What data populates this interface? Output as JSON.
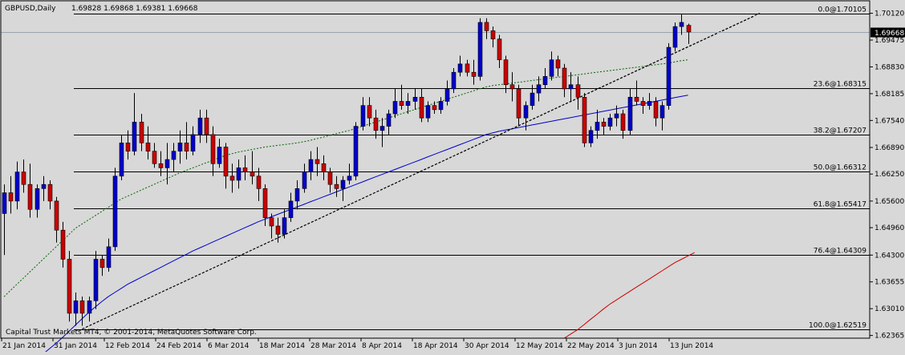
{
  "header": {
    "symbol": "GBPUSD,Daily",
    "ohlc": "1.69828 1.69868 1.69381 1.69668"
  },
  "footer": {
    "copyright": "Capital Trust Markets MT4, © 2001-2014, MetaQuotes Software Corp."
  },
  "colors": {
    "background": "#d8d8d8",
    "bull": "#0000cc",
    "bear": "#cc0000",
    "ma_slow": "#cc0000",
    "ma_mid": "#0000cc",
    "ma_fast": "#006600",
    "price_tag": "#000000"
  },
  "chart_data": {
    "type": "candlestick",
    "ylim": [
      1.623,
      1.7042
    ],
    "current_price": "1.69668",
    "price_ticks": [
      "1.70120",
      "1.69475",
      "1.68830",
      "1.68185",
      "1.67540",
      "1.66890",
      "1.66250",
      "1.65600",
      "1.64960",
      "1.64300",
      "1.63655",
      "1.63010",
      "1.62365"
    ],
    "date_ticks": [
      "21 Jan 2014",
      "31 Jan 2014",
      "12 Feb 2014",
      "24 Feb 2014",
      "6 Mar 2014",
      "18 Mar 2014",
      "28 Mar 2014",
      "8 Apr 2014",
      "18 Apr 2014",
      "30 Apr 2014",
      "12 May 2014",
      "22 May 2014",
      "3 Jun 2014",
      "13 Jun 2014"
    ],
    "fib_levels": [
      {
        "label": "0.0@1.70105",
        "price": 1.70105
      },
      {
        "label": "23.6@1.68315",
        "price": 1.68315
      },
      {
        "label": "38.2@1.67207",
        "price": 1.67207
      },
      {
        "label": "50.0@1.66312",
        "price": 1.66312
      },
      {
        "label": "61.8@1.65417",
        "price": 1.65417
      },
      {
        "label": "76.4@1.64309",
        "price": 1.64309
      },
      {
        "label": "100.0@1.62519",
        "price": 1.62519
      }
    ],
    "trendlines": [
      {
        "from": [
          12,
          1.6252
        ],
        "to": [
          116,
          1.7012
        ]
      },
      {
        "from": [
          12,
          1.6252
        ],
        "to": [
          115,
          1.7004
        ]
      }
    ],
    "candles": [
      [
        1.653,
        1.66,
        1.643,
        1.658
      ],
      [
        1.658,
        1.662,
        1.653,
        1.656
      ],
      [
        1.656,
        1.6655,
        1.654,
        1.663
      ],
      [
        1.663,
        1.666,
        1.658,
        1.66
      ],
      [
        1.66,
        1.665,
        1.652,
        1.654
      ],
      [
        1.654,
        1.66,
        1.652,
        1.659
      ],
      [
        1.659,
        1.662,
        1.656,
        1.66
      ],
      [
        1.66,
        1.661,
        1.654,
        1.656
      ],
      [
        1.656,
        1.657,
        1.646,
        1.649
      ],
      [
        1.649,
        1.651,
        1.64,
        1.642
      ],
      [
        1.642,
        1.644,
        1.627,
        1.629
      ],
      [
        1.629,
        1.634,
        1.626,
        1.632
      ],
      [
        1.632,
        1.633,
        1.626,
        1.629
      ],
      [
        1.629,
        1.633,
        1.627,
        1.632
      ],
      [
        1.632,
        1.644,
        1.63,
        1.642
      ],
      [
        1.642,
        1.643,
        1.638,
        1.64
      ],
      [
        1.64,
        1.647,
        1.639,
        1.645
      ],
      [
        1.645,
        1.664,
        1.644,
        1.662
      ],
      [
        1.662,
        1.672,
        1.661,
        1.67
      ],
      [
        1.67,
        1.673,
        1.666,
        1.668
      ],
      [
        1.668,
        1.682,
        1.667,
        1.675
      ],
      [
        1.675,
        1.677,
        1.668,
        1.67
      ],
      [
        1.67,
        1.674,
        1.666,
        1.668
      ],
      [
        1.668,
        1.67,
        1.664,
        1.665
      ],
      [
        1.665,
        1.668,
        1.662,
        1.664
      ],
      [
        1.664,
        1.67,
        1.66,
        1.666
      ],
      [
        1.666,
        1.67,
        1.663,
        1.668
      ],
      [
        1.668,
        1.673,
        1.665,
        1.67
      ],
      [
        1.67,
        1.675,
        1.666,
        1.668
      ],
      [
        1.668,
        1.674,
        1.667,
        1.672
      ],
      [
        1.672,
        1.678,
        1.67,
        1.676
      ],
      [
        1.676,
        1.678,
        1.67,
        1.672
      ],
      [
        1.672,
        1.674,
        1.662,
        1.665
      ],
      [
        1.665,
        1.671,
        1.664,
        1.669
      ],
      [
        1.669,
        1.67,
        1.659,
        1.662
      ],
      [
        1.662,
        1.665,
        1.658,
        1.661
      ],
      [
        1.661,
        1.666,
        1.659,
        1.664
      ],
      [
        1.664,
        1.667,
        1.661,
        1.663
      ],
      [
        1.663,
        1.668,
        1.66,
        1.662
      ],
      [
        1.662,
        1.664,
        1.656,
        1.659
      ],
      [
        1.659,
        1.66,
        1.65,
        1.652
      ],
      [
        1.652,
        1.653,
        1.647,
        1.65
      ],
      [
        1.65,
        1.652,
        1.646,
        1.648
      ],
      [
        1.648,
        1.654,
        1.647,
        1.652
      ],
      [
        1.652,
        1.658,
        1.651,
        1.656
      ],
      [
        1.656,
        1.661,
        1.654,
        1.659
      ],
      [
        1.659,
        1.665,
        1.658,
        1.663
      ],
      [
        1.663,
        1.668,
        1.661,
        1.666
      ],
      [
        1.666,
        1.669,
        1.662,
        1.665
      ],
      [
        1.665,
        1.667,
        1.661,
        1.663
      ],
      [
        1.663,
        1.664,
        1.658,
        1.66
      ],
      [
        1.66,
        1.662,
        1.657,
        1.659
      ],
      [
        1.659,
        1.662,
        1.656,
        1.661
      ],
      [
        1.661,
        1.665,
        1.66,
        1.662
      ],
      [
        1.662,
        1.675,
        1.661,
        1.674
      ],
      [
        1.674,
        1.681,
        1.673,
        1.679
      ],
      [
        1.679,
        1.681,
        1.674,
        1.676
      ],
      [
        1.676,
        1.678,
        1.671,
        1.673
      ],
      [
        1.673,
        1.676,
        1.669,
        1.674
      ],
      [
        1.674,
        1.678,
        1.672,
        1.677
      ],
      [
        1.677,
        1.683,
        1.676,
        1.68
      ],
      [
        1.68,
        1.684,
        1.678,
        1.679
      ],
      [
        1.679,
        1.682,
        1.677,
        1.68
      ],
      [
        1.68,
        1.683,
        1.678,
        1.681
      ],
      [
        1.681,
        1.683,
        1.675,
        1.676
      ],
      [
        1.676,
        1.68,
        1.675,
        1.679
      ],
      [
        1.679,
        1.68,
        1.677,
        1.678
      ],
      [
        1.678,
        1.681,
        1.677,
        1.68
      ],
      [
        1.68,
        1.685,
        1.679,
        1.683
      ],
      [
        1.683,
        1.688,
        1.682,
        1.687
      ],
      [
        1.687,
        1.691,
        1.686,
        1.689
      ],
      [
        1.689,
        1.69,
        1.686,
        1.687
      ],
      [
        1.687,
        1.69,
        1.684,
        1.686
      ],
      [
        1.686,
        1.7,
        1.685,
        1.699
      ],
      [
        1.699,
        1.7,
        1.695,
        1.697
      ],
      [
        1.697,
        1.698,
        1.693,
        1.695
      ],
      [
        1.695,
        1.696,
        1.688,
        1.69
      ],
      [
        1.69,
        1.691,
        1.682,
        1.684
      ],
      [
        1.684,
        1.687,
        1.68,
        1.683
      ],
      [
        1.683,
        1.684,
        1.674,
        1.676
      ],
      [
        1.676,
        1.68,
        1.673,
        1.679
      ],
      [
        1.679,
        1.684,
        1.678,
        1.682
      ],
      [
        1.682,
        1.686,
        1.68,
        1.684
      ],
      [
        1.684,
        1.688,
        1.683,
        1.686
      ],
      [
        1.686,
        1.692,
        1.685,
        1.69
      ],
      [
        1.69,
        1.691,
        1.686,
        1.688
      ],
      [
        1.688,
        1.689,
        1.681,
        1.683
      ],
      [
        1.683,
        1.687,
        1.68,
        1.684
      ],
      [
        1.684,
        1.686,
        1.678,
        1.681
      ],
      [
        1.681,
        1.682,
        1.669,
        1.67
      ],
      [
        1.67,
        1.674,
        1.669,
        1.673
      ],
      [
        1.673,
        1.678,
        1.671,
        1.675
      ],
      [
        1.675,
        1.676,
        1.672,
        1.674
      ],
      [
        1.674,
        1.677,
        1.673,
        1.676
      ],
      [
        1.676,
        1.679,
        1.674,
        1.677
      ],
      [
        1.677,
        1.678,
        1.671,
        1.673
      ],
      [
        1.673,
        1.683,
        1.672,
        1.681
      ],
      [
        1.681,
        1.685,
        1.679,
        1.68
      ],
      [
        1.68,
        1.681,
        1.677,
        1.679
      ],
      [
        1.679,
        1.682,
        1.678,
        1.68
      ],
      [
        1.68,
        1.681,
        1.674,
        1.676
      ],
      [
        1.676,
        1.68,
        1.673,
        1.679
      ],
      [
        1.679,
        1.694,
        1.678,
        1.693
      ],
      [
        1.693,
        1.699,
        1.692,
        1.698
      ],
      [
        1.698,
        1.701,
        1.696,
        1.699
      ],
      [
        1.6983,
        1.6987,
        1.6938,
        1.6967
      ]
    ],
    "ma_series": [
      {
        "color_key": "ma_slow",
        "x_start": 86,
        "values": [
          1.623,
          1.624,
          1.625,
          1.6262,
          1.6275,
          1.6287,
          1.63,
          1.6312,
          1.6322,
          1.6332,
          1.6342,
          1.6352,
          1.6362,
          1.6372,
          1.6382,
          1.6392,
          1.6402,
          1.6412,
          1.642,
          1.6428,
          1.6436
        ]
      },
      {
        "color_key": "ma_mid",
        "x_start": 5,
        "values": [
          1.618,
          1.6192,
          1.6205,
          1.6218,
          1.6232,
          1.6247,
          1.6262,
          1.6277,
          1.6292,
          1.6305,
          1.6318,
          1.633,
          1.634,
          1.635,
          1.636,
          1.6368,
          1.6376,
          1.6384,
          1.6392,
          1.64,
          1.6408,
          1.6416,
          1.6424,
          1.6432,
          1.644,
          1.6447,
          1.6454,
          1.6461,
          1.6468,
          1.6475,
          1.6482,
          1.6489,
          1.6496,
          1.6503,
          1.651,
          1.6516,
          1.6522,
          1.6528,
          1.6534,
          1.654,
          1.6546,
          1.6552,
          1.6558,
          1.6564,
          1.657,
          1.6576,
          1.6582,
          1.6588,
          1.6594,
          1.66,
          1.6606,
          1.6612,
          1.6618,
          1.6624,
          1.663,
          1.6636,
          1.6642,
          1.6648,
          1.6654,
          1.666,
          1.6666,
          1.6672,
          1.6678,
          1.6684,
          1.669,
          1.6696,
          1.6702,
          1.6708,
          1.6714,
          1.672,
          1.6724,
          1.6728,
          1.6731,
          1.6734,
          1.6737,
          1.674,
          1.6743,
          1.6746,
          1.6749,
          1.6752,
          1.6755,
          1.6758,
          1.6761,
          1.6764,
          1.6767,
          1.677,
          1.6773,
          1.6776,
          1.6779,
          1.6782,
          1.6785,
          1.6788,
          1.6791,
          1.6794,
          1.6797,
          1.68,
          1.6803,
          1.6806,
          1.6809,
          1.6812,
          1.6815
        ]
      },
      {
        "color_key": "ma_fast",
        "x_start": 0,
        "values": [
          1.633,
          1.6345,
          1.636,
          1.6375,
          1.639,
          1.6405,
          1.642,
          1.6435,
          1.645,
          1.6465,
          1.648,
          1.6495,
          1.6505,
          1.6515,
          1.6525,
          1.6535,
          1.6545,
          1.6555,
          1.6565,
          1.6572,
          1.6579,
          1.6586,
          1.6593,
          1.66,
          1.6607,
          1.6614,
          1.6621,
          1.6628,
          1.6634,
          1.664,
          1.6646,
          1.6652,
          1.6658,
          1.6664,
          1.667,
          1.6674,
          1.6678,
          1.6681,
          1.6684,
          1.6687,
          1.669,
          1.6692,
          1.6694,
          1.6696,
          1.6698,
          1.67,
          1.6703,
          1.6706,
          1.671,
          1.6714,
          1.6718,
          1.6722,
          1.6726,
          1.673,
          1.6735,
          1.674,
          1.6745,
          1.675,
          1.6755,
          1.676,
          1.6765,
          1.677,
          1.6775,
          1.678,
          1.6785,
          1.679,
          1.6795,
          1.68,
          1.6805,
          1.681,
          1.6815,
          1.682,
          1.6825,
          1.683,
          1.6835,
          1.6838,
          1.684,
          1.6842,
          1.6844,
          1.6846,
          1.6848,
          1.685,
          1.6852,
          1.6854,
          1.6856,
          1.6858,
          1.686,
          1.6862,
          1.6864,
          1.6866,
          1.6868,
          1.687,
          1.6872,
          1.6874,
          1.6876,
          1.6878,
          1.688,
          1.6882,
          1.6884,
          1.6886,
          1.6888,
          1.689,
          1.6892,
          1.6895,
          1.6898,
          1.69
        ]
      }
    ]
  }
}
